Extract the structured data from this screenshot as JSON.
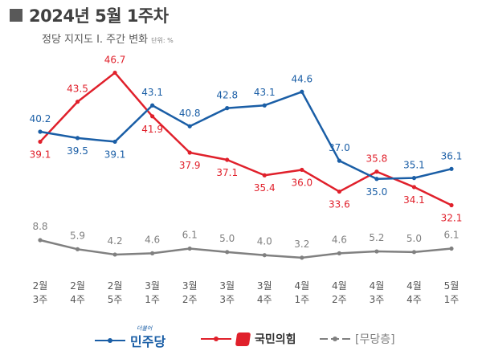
{
  "header": {
    "title": "2024년 5월 1주차",
    "subtitle": "정당 지지도 Ⅰ. 주간 변화",
    "unit": "단위: %"
  },
  "colors": {
    "blue": "#1a5ea6",
    "red": "#e0202b",
    "gray": "#808080"
  },
  "chart_data": {
    "type": "line",
    "categories": [
      [
        "2월",
        "3주"
      ],
      [
        "2월",
        "4주"
      ],
      [
        "2월",
        "5주"
      ],
      [
        "3월",
        "1주"
      ],
      [
        "3월",
        "2주"
      ],
      [
        "3월",
        "3주"
      ],
      [
        "3월",
        "4주"
      ],
      [
        "4월",
        "1주"
      ],
      [
        "4월",
        "2주"
      ],
      [
        "4월",
        "3주"
      ],
      [
        "4월",
        "4주"
      ],
      [
        "5월",
        "1주"
      ]
    ],
    "series": [
      {
        "name": "민주당",
        "color": "#1a5ea6",
        "values": [
          40.2,
          39.5,
          39.1,
          43.1,
          40.8,
          42.8,
          43.1,
          44.6,
          37.0,
          35.0,
          35.1,
          36.1
        ]
      },
      {
        "name": "국민의힘",
        "color": "#e0202b",
        "values": [
          39.1,
          43.5,
          46.7,
          41.9,
          37.9,
          37.1,
          35.4,
          36.0,
          33.6,
          35.8,
          34.1,
          32.1
        ]
      },
      {
        "name": "무당층",
        "color": "#808080",
        "values": [
          8.8,
          5.9,
          4.2,
          4.6,
          6.1,
          5.0,
          4.0,
          3.2,
          4.6,
          5.2,
          5.0,
          6.1
        ]
      }
    ],
    "grid": false
  },
  "legend": [
    {
      "label": "민주당",
      "color": "#1a5ea6",
      "small_text": "더불어"
    },
    {
      "label": "국민의힘",
      "color": "#e0202b"
    },
    {
      "label": "[무당층]",
      "color": "#808080"
    }
  ]
}
